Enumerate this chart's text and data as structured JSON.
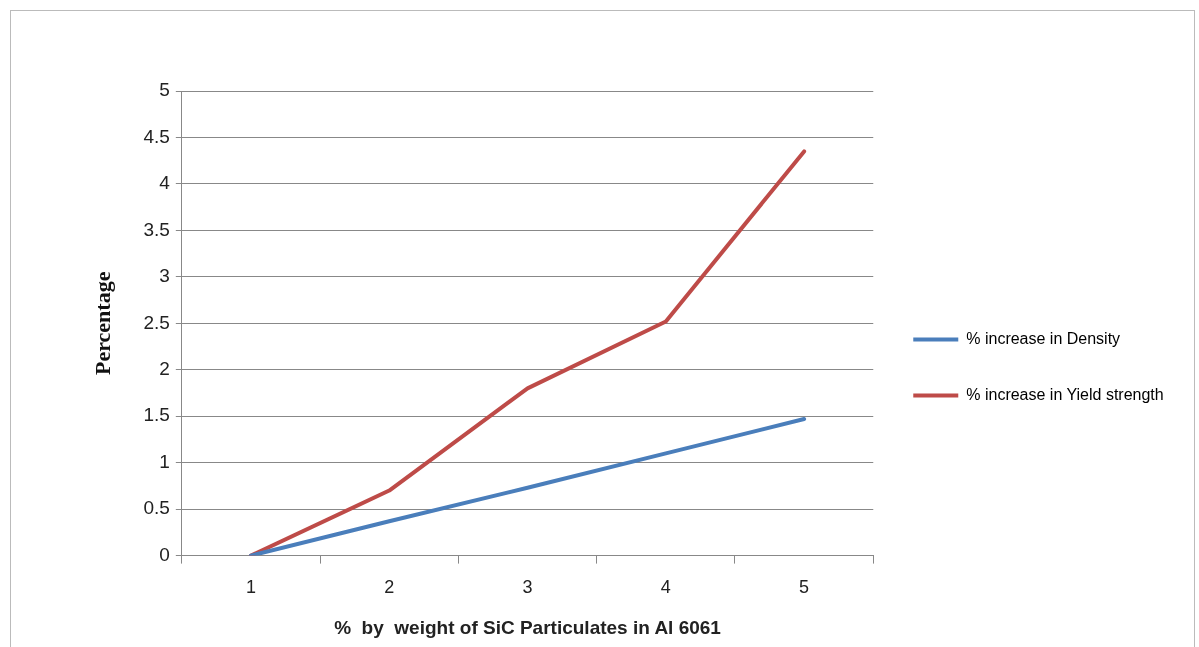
{
  "chart_data": {
    "type": "line",
    "xlabel": "%  by  weight of SiC Particulates in Al 6061",
    "ylabel": "Percentage",
    "categories": [
      "1",
      "2",
      "3",
      "4",
      "5"
    ],
    "series": [
      {
        "name": "% increase in Density",
        "color": "#4a7ebb",
        "values": [
          0,
          0.37,
          0.73,
          1.1,
          1.47
        ]
      },
      {
        "name": "% increase in Yield strength",
        "color": "#be4b48",
        "values": [
          0,
          0.7,
          1.8,
          2.52,
          4.35
        ]
      }
    ],
    "ylim": [
      0,
      5
    ],
    "yticks": [
      0,
      0.5,
      1,
      1.5,
      2,
      2.5,
      3,
      3.5,
      4,
      4.5,
      5
    ],
    "grid": "y",
    "legend": "right",
    "marker": "none",
    "line_style": "solid"
  }
}
